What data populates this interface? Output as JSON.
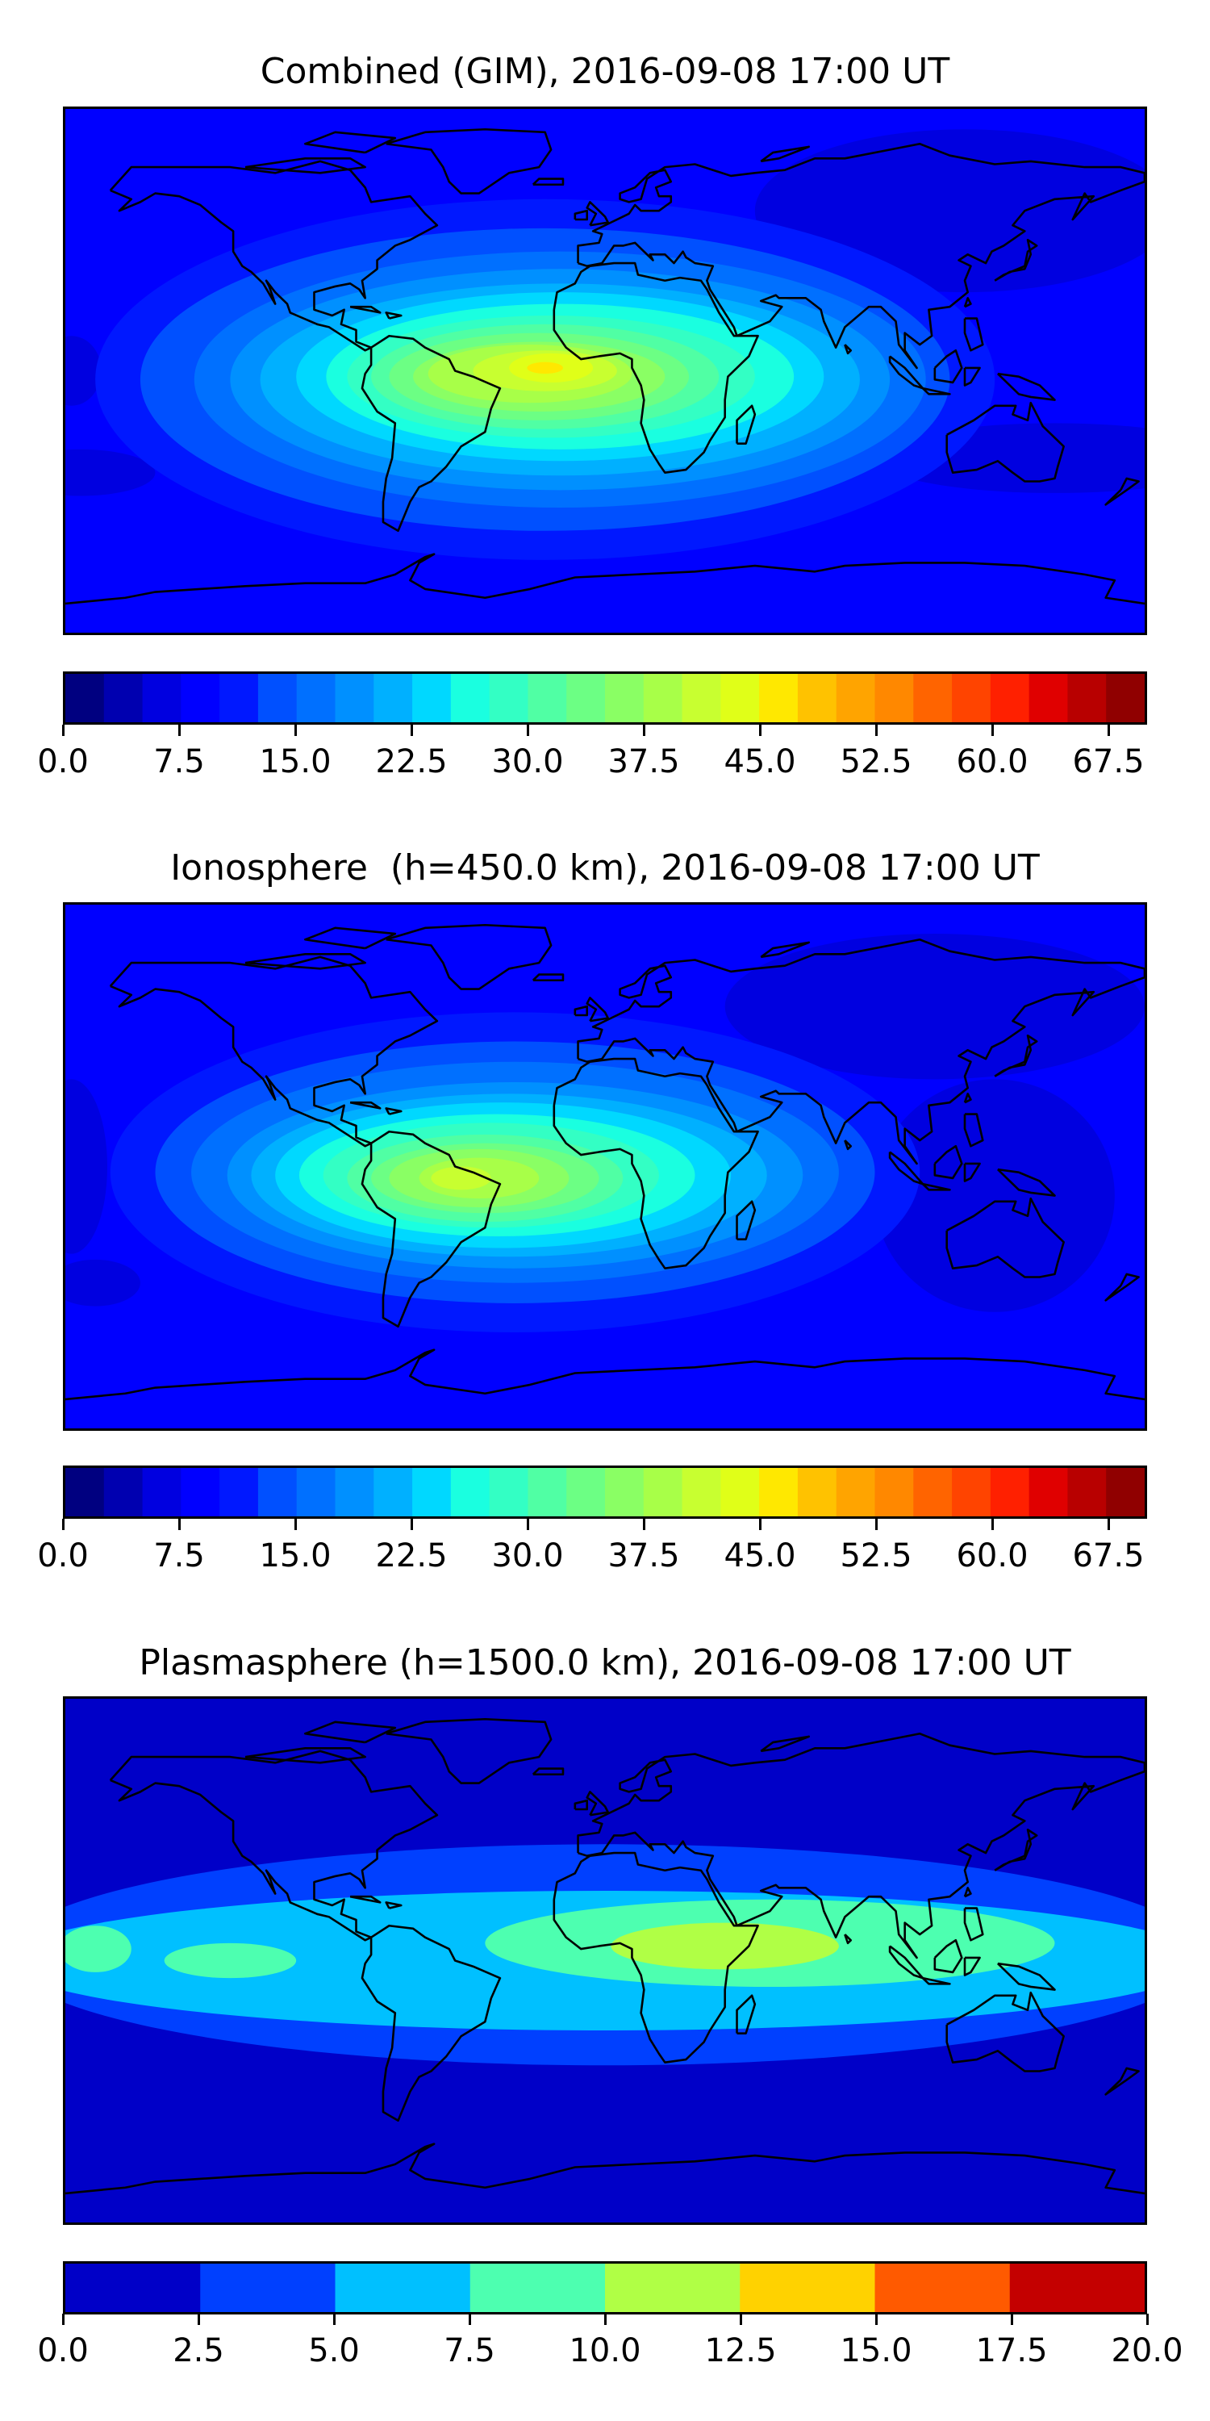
{
  "chart_data": [
    {
      "type": "heatmap",
      "subtype": "filled-contour-map",
      "title": "Combined (GIM), 2016-09-08 17:00 UT",
      "colormap": "jet",
      "levels": {
        "min": 0.0,
        "max": 70.0,
        "step": 2.5
      },
      "colorbar_ticks": [
        "0.0",
        "7.5",
        "15.0",
        "22.5",
        "30.0",
        "37.5",
        "45.0",
        "52.5",
        "60.0",
        "67.5"
      ],
      "tick_values": [
        0,
        7.5,
        15,
        22.5,
        30,
        37.5,
        45,
        52.5,
        60,
        67.5
      ],
      "colors": [
        "#000080",
        "#0000b0",
        "#0000e0",
        "#0000ff",
        "#0018ff",
        "#0050ff",
        "#0070ff",
        "#0090ff",
        "#00b0ff",
        "#00d8ff",
        "#1affe0",
        "#33ffc4",
        "#50ffa4",
        "#6cff84",
        "#8aff64",
        "#a8ff48",
        "#c8ff30",
        "#e0ff18",
        "#ffe800",
        "#ffc200",
        "#ffa400",
        "#ff8800",
        "#ff6400",
        "#ff4400",
        "#ff2000",
        "#e00000",
        "#b80000",
        "#900000"
      ],
      "max_region": "tropical Atlantic / South America / Africa (~45)"
    },
    {
      "type": "heatmap",
      "subtype": "filled-contour-map",
      "title": "Ionosphere  (h=450.0 km), 2016-09-08 17:00 UT",
      "colormap": "jet",
      "levels": {
        "min": 0.0,
        "max": 70.0,
        "step": 2.5
      },
      "colorbar_ticks": [
        "0.0",
        "7.5",
        "15.0",
        "22.5",
        "30.0",
        "37.5",
        "45.0",
        "52.5",
        "60.0",
        "67.5"
      ],
      "tick_values": [
        0,
        7.5,
        15,
        22.5,
        30,
        37.5,
        45,
        52.5,
        60,
        67.5
      ],
      "colors": [
        "#000080",
        "#0000b0",
        "#0000e0",
        "#0000ff",
        "#0018ff",
        "#0050ff",
        "#0070ff",
        "#0090ff",
        "#00b0ff",
        "#00d8ff",
        "#1affe0",
        "#33ffc4",
        "#50ffa4",
        "#6cff84",
        "#8aff64",
        "#a8ff48",
        "#c8ff30",
        "#e0ff18",
        "#ffe800",
        "#ffc200",
        "#ffa400",
        "#ff8800",
        "#ff6400",
        "#ff4400",
        "#ff2000",
        "#e00000",
        "#b80000",
        "#900000"
      ],
      "max_region": "South America / tropical Atlantic (~40)"
    },
    {
      "type": "heatmap",
      "subtype": "filled-contour-map",
      "title": "Plasmasphere (h=1500.0 km), 2016-09-08 17:00 UT",
      "colormap": "jet",
      "levels": {
        "min": 0.0,
        "max": 20.0,
        "step": 2.5
      },
      "colorbar_ticks": [
        "0.0",
        "2.5",
        "5.0",
        "7.5",
        "10.0",
        "12.5",
        "15.0",
        "17.5",
        "20.0"
      ],
      "tick_values": [
        0,
        2.5,
        5,
        7.5,
        10,
        12.5,
        15,
        17.5,
        20
      ],
      "colors": [
        "#0000c8",
        "#0040ff",
        "#00c0ff",
        "#4dffb0",
        "#b0ff45",
        "#ffd200",
        "#ff5a00",
        "#c40000"
      ],
      "max_region": "Africa / Indian Ocean (~10-12.5)"
    }
  ]
}
